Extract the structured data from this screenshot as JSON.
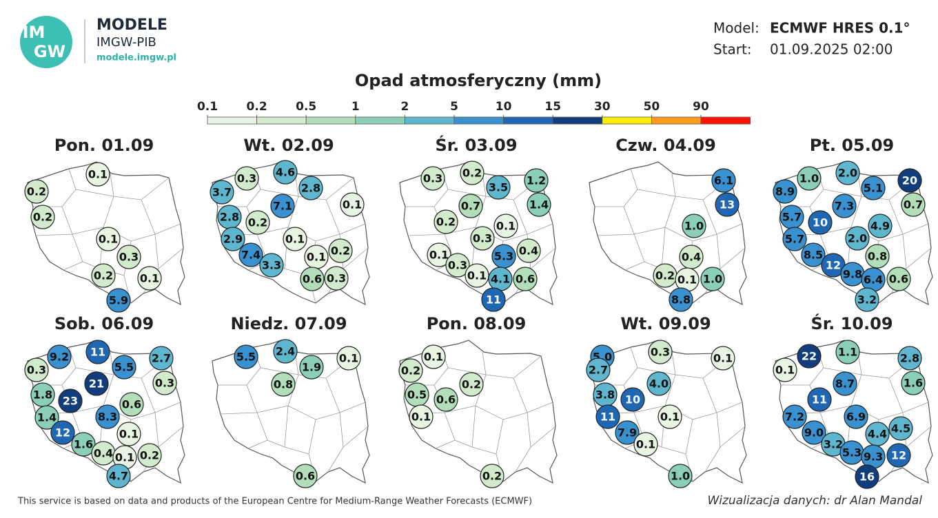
{
  "header": {
    "logo_lines": [
      "IM",
      "GW"
    ],
    "brand": "MODELE",
    "institute": "IMGW-PIB",
    "url": "modele.imgw.pl",
    "model_label": "Model:",
    "model": "ECMWF HRES 0.1°",
    "start_label": "Start:",
    "start": "01.09.2025 02:00"
  },
  "legend": {
    "title": "Opad atmosferyczny (mm)",
    "ticks": [
      0.1,
      0.2,
      0.5,
      1,
      2,
      5,
      10,
      15,
      30,
      50,
      90
    ],
    "colors": [
      "#e9f5e3",
      "#d3ebcd",
      "#b3deba",
      "#8ccfb9",
      "#5fb7cf",
      "#3a91cf",
      "#1f67b2",
      "#123d7c",
      "#ffec00",
      "#ff9a1f",
      "#ff1200"
    ]
  },
  "maps": [
    {
      "title": "Pon. 01.09",
      "values": [
        0.1,
        0.2,
        0.2,
        0.1,
        0.3,
        0.2,
        0.1,
        5.9
      ],
      "value_labels": [
        "0.1",
        "0.2",
        "0.2",
        "0.1",
        "0.3",
        "0.2",
        "0.1",
        "5.9"
      ]
    },
    {
      "title": "Wt. 02.09",
      "values": [
        4.6,
        0.3,
        2.8,
        3.7,
        0.1,
        7.1,
        2.8,
        0.2,
        2.9,
        0.1,
        0.2,
        0.1,
        7.4,
        3.3,
        0.6,
        0.3
      ],
      "value_labels": [
        "4.6",
        "0.3",
        "2.8",
        "3.7",
        "0.1",
        "7.1",
        "2.8",
        "0.2",
        "2.9",
        "0.1",
        "0.2",
        "0.1",
        "7.4",
        "3.3",
        "0.6",
        "0.3"
      ]
    },
    {
      "title": "Śr. 03.09",
      "values": [
        0.2,
        0.3,
        1.2,
        3.5,
        0.7,
        1.4,
        0.2,
        0.1,
        0.3,
        5.3,
        0.4,
        0.1,
        0.3,
        0.1,
        4.1,
        0.6,
        11
      ],
      "value_labels": [
        "0.2",
        "0.3",
        "1.2",
        "3.5",
        "0.7",
        "1.4",
        "0.2",
        "0.1",
        "0.3",
        "5.3",
        "0.4",
        "0.1",
        "0.3",
        "0.1",
        "4.1",
        "0.6",
        "11"
      ]
    },
    {
      "title": "Czw. 04.09",
      "values": [
        6.1,
        13,
        1.0,
        0.4,
        0.2,
        0.1,
        1.0,
        8.8
      ],
      "value_labels": [
        "6.1",
        "13",
        "1.0",
        "0.4",
        "0.2",
        "0.1",
        "1.0",
        "8.8"
      ]
    },
    {
      "title": "Pt. 05.09",
      "values": [
        2.0,
        1.0,
        20,
        8.9,
        5.1,
        0.7,
        7.3,
        5.7,
        10,
        4.9,
        5.7,
        2.0,
        0.8,
        8.5,
        12,
        9.8,
        6.4,
        0.6,
        3.2
      ],
      "value_labels": [
        "2.0",
        "1.0",
        "20",
        "8.9",
        "5.1",
        "0.7",
        "7.3",
        "5.7",
        "10",
        "4.9",
        "5.7",
        "2.0",
        "0.8",
        "8.5",
        "12",
        "9.8",
        "6.4",
        "0.6",
        "3.2"
      ]
    },
    {
      "title": "Sob. 06.09",
      "values": [
        11,
        9.2,
        2.7,
        0.3,
        5.5,
        0.3,
        21,
        1.8,
        23,
        0.6,
        1.4,
        8.3,
        12,
        0.1,
        1.6,
        0.4,
        0.1,
        0.2,
        4.7
      ],
      "value_labels": [
        "11",
        "9.2",
        "2.7",
        "0.3",
        "5.5",
        "0.3",
        "21",
        "1.8",
        "23",
        "0.6",
        "1.4",
        "8.3",
        "12",
        "0.1",
        "1.6",
        "0.4",
        "0.1",
        "0.2",
        "4.7"
      ]
    },
    {
      "title": "Niedz. 07.09",
      "values": [
        5.5,
        2.4,
        0.1,
        1.9,
        0.8,
        0.6
      ],
      "value_labels": [
        "5.5",
        "2.4",
        "0.1",
        "1.9",
        "0.8",
        "0.6"
      ]
    },
    {
      "title": "Pon. 08.09",
      "values": [
        0.1,
        0.2,
        0.2,
        0.5,
        0.6,
        0.1,
        0.2
      ],
      "value_labels": [
        "0.1",
        "0.2",
        "0.2",
        "0.5",
        "0.6",
        "0.1",
        "0.2"
      ]
    },
    {
      "title": "Wt. 09.09",
      "values": [
        5.0,
        0.3,
        0.1,
        2.7,
        4.0,
        3.8,
        10,
        11,
        0.1,
        7.9,
        0.1,
        1.0
      ],
      "value_labels": [
        "5.0",
        "0.3",
        "0.1",
        "2.7",
        "4.0",
        "3.8",
        "10",
        "11",
        "0.1",
        "7.9",
        "0.1",
        "1.0"
      ]
    },
    {
      "title": "Śr. 10.09",
      "values": [
        22,
        1.1,
        2.8,
        0.1,
        8.7,
        1.6,
        11,
        7.2,
        6.9,
        4.5,
        9.0,
        4.4,
        3.2,
        5.3,
        9.3,
        12,
        16
      ],
      "value_labels": [
        "22",
        "1.1",
        "2.8",
        "0.1",
        "8.7",
        "1.6",
        "11",
        "7.2",
        "6.9",
        "4.5",
        "9.0",
        "4.4",
        "3.2",
        "5.3",
        "9.3",
        "12",
        "16"
      ]
    }
  ],
  "footer": {
    "credit": "This service is based on data and products of the European Centre for Medium-Range Weather Forecasts (ECMWF)",
    "author": "Wizualizacja danych: dr Alan Mandal"
  }
}
